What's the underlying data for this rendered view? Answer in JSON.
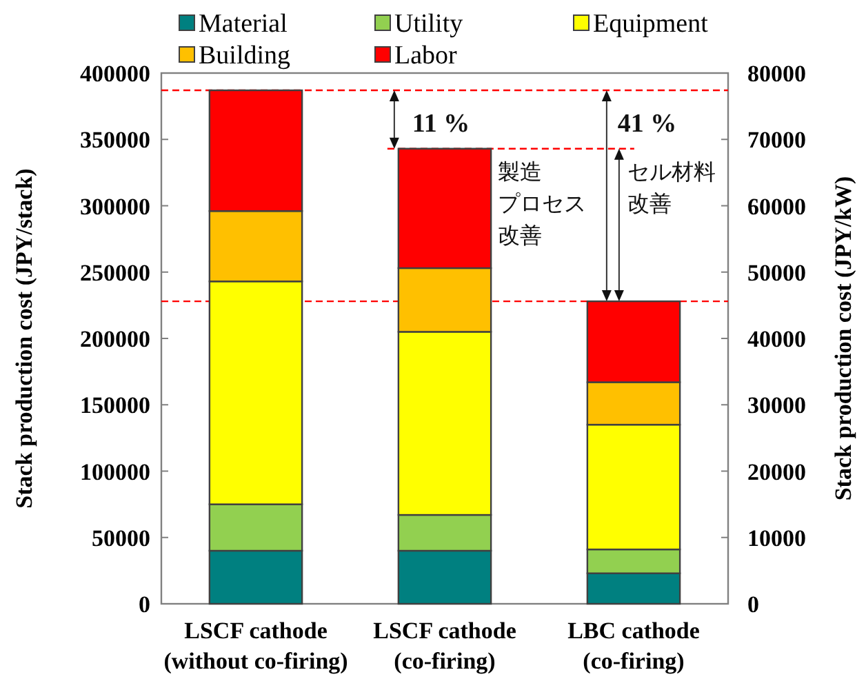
{
  "chart_data": {
    "type": "bar",
    "stacked": true,
    "categories": [
      "LSCF cathode\n(without co-firing)",
      "LSCF cathode\n(co-firing)",
      "LBC cathode\n(co-firing)"
    ],
    "series": [
      {
        "name": "Material",
        "color": "#008080",
        "values": [
          40000,
          40000,
          23000
        ]
      },
      {
        "name": "Utility",
        "color": "#92d050",
        "values": [
          35000,
          27000,
          18000
        ]
      },
      {
        "name": "Equipment",
        "color": "#ffff00",
        "values": [
          168000,
          138000,
          94000
        ]
      },
      {
        "name": "Building",
        "color": "#ffc000",
        "values": [
          53000,
          48000,
          32000
        ]
      },
      {
        "name": "Labor",
        "color": "#ff0000",
        "values": [
          91000,
          90000,
          61000
        ]
      }
    ],
    "ylabel": "Stack production cost (JPY/stack)",
    "y2label": "Stack production cost (JPY/kW)",
    "ylim": [
      0,
      400000
    ],
    "yticks": [
      0,
      50000,
      100000,
      150000,
      200000,
      250000,
      300000,
      350000,
      400000
    ],
    "y2lim": [
      0,
      80000
    ],
    "y2ticks": [
      0,
      10000,
      20000,
      30000,
      40000,
      50000,
      60000,
      70000,
      80000
    ],
    "legend": "top",
    "ref_lines": [
      {
        "axis": "y",
        "value": 387000,
        "color": "#ff0000",
        "line_style": "dashed"
      },
      {
        "axis": "y",
        "value": 343000,
        "color": "#ff0000",
        "line_style": "dashed"
      },
      {
        "axis": "y",
        "value": 228000,
        "color": "#ff0000",
        "line_style": "dashed"
      }
    ],
    "annotations": [
      "11 %",
      "41 %",
      "製造",
      "プロセス",
      "改善",
      "セル材料",
      "改善"
    ]
  }
}
